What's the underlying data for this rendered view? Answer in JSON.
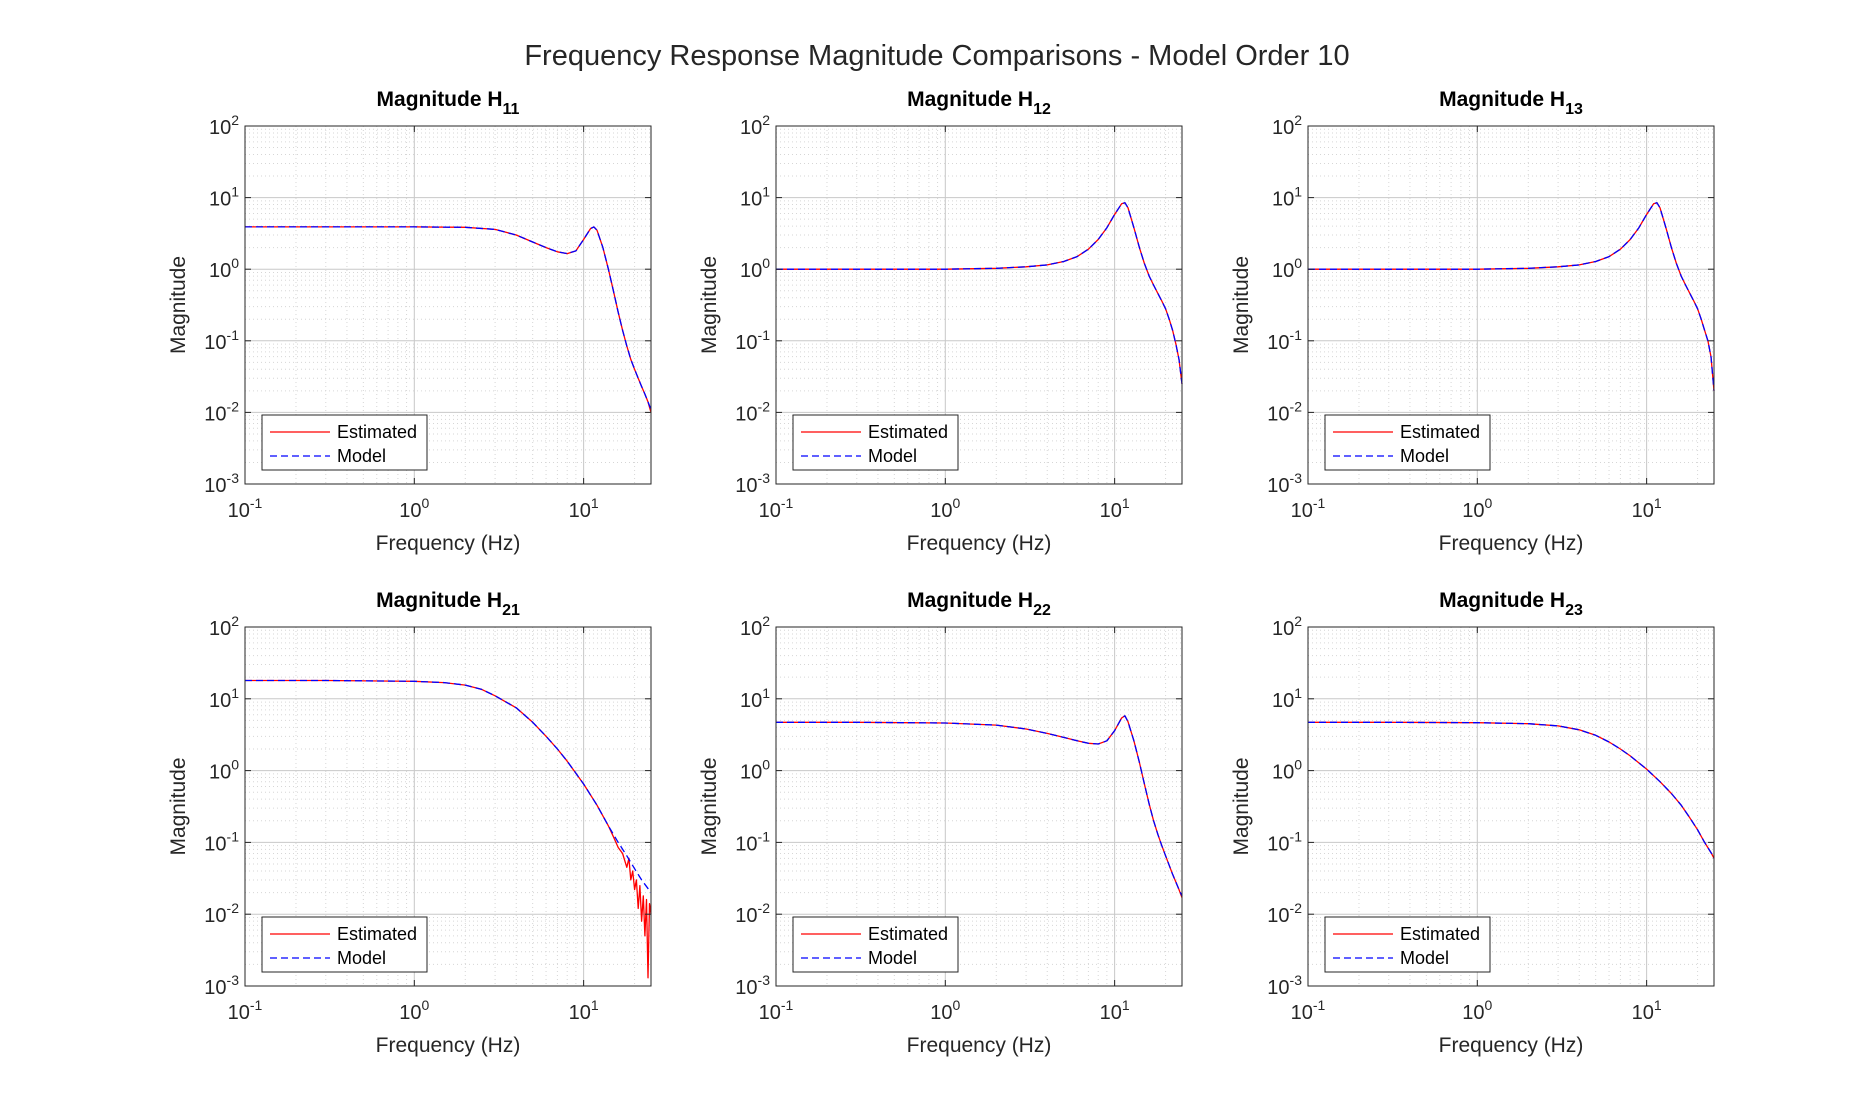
{
  "figure_title": "Frequency Response Magnitude Comparisons - Model Order 10",
  "colors": {
    "estimated": "#ff0000",
    "model": "#0000ff",
    "axes": "#262626",
    "grid": "#d6d6d6"
  },
  "chart_data": [
    {
      "type": "line",
      "title_main": "Magnitude H",
      "title_sub": "11",
      "xlabel": "Frequency (Hz)",
      "ylabel": "Magnitude",
      "xscale": "log",
      "yscale": "log",
      "xlim": [
        0.1,
        25
      ],
      "ylim": [
        0.001,
        100
      ],
      "grid": true,
      "legend_location": "bottom-left",
      "x_ticks": [
        {
          "base": "10",
          "exp": "-1"
        },
        {
          "base": "10",
          "exp": "0"
        },
        {
          "base": "10",
          "exp": "1"
        }
      ],
      "y_ticks": [
        {
          "base": "10",
          "exp": "-3"
        },
        {
          "base": "10",
          "exp": "-2"
        },
        {
          "base": "10",
          "exp": "-1"
        },
        {
          "base": "10",
          "exp": "0"
        },
        {
          "base": "10",
          "exp": "1"
        },
        {
          "base": "10",
          "exp": "2"
        }
      ],
      "series": [
        {
          "name": "Estimated",
          "style": "solid",
          "x": [
            0.1,
            0.3,
            1,
            2,
            3,
            4,
            5,
            6,
            7,
            8,
            9,
            10,
            11,
            11.5,
            12,
            13,
            14,
            15,
            16,
            17,
            18,
            19,
            20,
            21,
            22,
            23,
            24,
            25
          ],
          "y": [
            3.9,
            3.9,
            3.9,
            3.85,
            3.6,
            3.0,
            2.4,
            2.0,
            1.75,
            1.65,
            1.8,
            2.6,
            3.7,
            3.9,
            3.5,
            2.0,
            1.0,
            0.5,
            0.25,
            0.14,
            0.085,
            0.055,
            0.04,
            0.03,
            0.023,
            0.018,
            0.014,
            0.01
          ]
        },
        {
          "name": "Model",
          "style": "dashed",
          "x": [
            0.1,
            0.3,
            1,
            2,
            3,
            4,
            5,
            6,
            7,
            8,
            9,
            10,
            11,
            11.5,
            12,
            13,
            14,
            15,
            16,
            17,
            18,
            19,
            20,
            21,
            22,
            23,
            24,
            25
          ],
          "y": [
            3.9,
            3.9,
            3.9,
            3.85,
            3.6,
            3.0,
            2.4,
            2.0,
            1.75,
            1.65,
            1.8,
            2.6,
            3.7,
            3.9,
            3.5,
            2.0,
            1.0,
            0.5,
            0.25,
            0.14,
            0.085,
            0.055,
            0.04,
            0.03,
            0.023,
            0.018,
            0.014,
            0.011
          ]
        }
      ]
    },
    {
      "type": "line",
      "title_main": "Magnitude H",
      "title_sub": "12",
      "xlabel": "Frequency (Hz)",
      "ylabel": "Magnitude",
      "xscale": "log",
      "yscale": "log",
      "xlim": [
        0.1,
        25
      ],
      "ylim": [
        0.001,
        100
      ],
      "grid": true,
      "legend_location": "bottom-left",
      "x_ticks": [
        {
          "base": "10",
          "exp": "-1"
        },
        {
          "base": "10",
          "exp": "0"
        },
        {
          "base": "10",
          "exp": "1"
        }
      ],
      "y_ticks": [
        {
          "base": "10",
          "exp": "-3"
        },
        {
          "base": "10",
          "exp": "-2"
        },
        {
          "base": "10",
          "exp": "-1"
        },
        {
          "base": "10",
          "exp": "0"
        },
        {
          "base": "10",
          "exp": "1"
        },
        {
          "base": "10",
          "exp": "2"
        }
      ],
      "series": [
        {
          "name": "Estimated",
          "style": "solid",
          "x": [
            0.1,
            0.3,
            1,
            2,
            3,
            4,
            5,
            6,
            7,
            8,
            9,
            10,
            11,
            11.5,
            12,
            13,
            14,
            15,
            16,
            17,
            18,
            19,
            20,
            21,
            22,
            23,
            24,
            25
          ],
          "y": [
            1.0,
            1.0,
            1.0,
            1.03,
            1.08,
            1.15,
            1.28,
            1.5,
            1.9,
            2.6,
            3.8,
            5.8,
            8.2,
            8.5,
            7.2,
            3.8,
            2.0,
            1.2,
            0.8,
            0.6,
            0.46,
            0.36,
            0.28,
            0.2,
            0.14,
            0.09,
            0.055,
            0.025
          ]
        },
        {
          "name": "Model",
          "style": "dashed",
          "x": [
            0.1,
            0.3,
            1,
            2,
            3,
            4,
            5,
            6,
            7,
            8,
            9,
            10,
            11,
            11.5,
            12,
            13,
            14,
            15,
            16,
            17,
            18,
            19,
            20,
            21,
            22,
            23,
            24,
            25
          ],
          "y": [
            1.0,
            1.0,
            1.0,
            1.03,
            1.08,
            1.15,
            1.28,
            1.5,
            1.9,
            2.6,
            3.8,
            5.8,
            8.2,
            8.5,
            7.2,
            3.8,
            2.0,
            1.2,
            0.8,
            0.6,
            0.46,
            0.36,
            0.28,
            0.2,
            0.14,
            0.09,
            0.055,
            0.025
          ]
        }
      ]
    },
    {
      "type": "line",
      "title_main": "Magnitude H",
      "title_sub": "13",
      "xlabel": "Frequency (Hz)",
      "ylabel": "Magnitude",
      "xscale": "log",
      "yscale": "log",
      "xlim": [
        0.1,
        25
      ],
      "ylim": [
        0.001,
        100
      ],
      "grid": true,
      "legend_location": "bottom-left",
      "x_ticks": [
        {
          "base": "10",
          "exp": "-1"
        },
        {
          "base": "10",
          "exp": "0"
        },
        {
          "base": "10",
          "exp": "1"
        }
      ],
      "y_ticks": [
        {
          "base": "10",
          "exp": "-3"
        },
        {
          "base": "10",
          "exp": "-2"
        },
        {
          "base": "10",
          "exp": "-1"
        },
        {
          "base": "10",
          "exp": "0"
        },
        {
          "base": "10",
          "exp": "1"
        },
        {
          "base": "10",
          "exp": "2"
        }
      ],
      "series": [
        {
          "name": "Estimated",
          "style": "solid",
          "x": [
            0.1,
            0.3,
            1,
            2,
            3,
            4,
            5,
            6,
            7,
            8,
            9,
            10,
            11,
            11.5,
            12,
            13,
            14,
            15,
            16,
            17,
            18,
            19,
            20,
            21,
            22,
            23,
            24,
            25
          ],
          "y": [
            1.0,
            1.0,
            1.0,
            1.03,
            1.08,
            1.15,
            1.28,
            1.5,
            1.9,
            2.6,
            3.8,
            5.8,
            8.2,
            8.5,
            7.2,
            3.8,
            2.0,
            1.2,
            0.8,
            0.6,
            0.46,
            0.36,
            0.28,
            0.2,
            0.14,
            0.1,
            0.06,
            0.02
          ]
        },
        {
          "name": "Model",
          "style": "dashed",
          "x": [
            0.1,
            0.3,
            1,
            2,
            3,
            4,
            5,
            6,
            7,
            8,
            9,
            10,
            11,
            11.5,
            12,
            13,
            14,
            15,
            16,
            17,
            18,
            19,
            20,
            21,
            22,
            23,
            24,
            25
          ],
          "y": [
            1.0,
            1.0,
            1.0,
            1.03,
            1.08,
            1.15,
            1.28,
            1.5,
            1.9,
            2.6,
            3.8,
            5.8,
            8.2,
            8.5,
            7.2,
            3.8,
            2.0,
            1.2,
            0.8,
            0.6,
            0.46,
            0.36,
            0.28,
            0.2,
            0.14,
            0.1,
            0.06,
            0.02
          ]
        }
      ]
    },
    {
      "type": "line",
      "title_main": "Magnitude H",
      "title_sub": "21",
      "xlabel": "Frequency (Hz)",
      "ylabel": "Magnitude",
      "xscale": "log",
      "yscale": "log",
      "xlim": [
        0.1,
        25
      ],
      "ylim": [
        0.001,
        100
      ],
      "grid": true,
      "legend_location": "bottom-left",
      "x_ticks": [
        {
          "base": "10",
          "exp": "-1"
        },
        {
          "base": "10",
          "exp": "0"
        },
        {
          "base": "10",
          "exp": "1"
        }
      ],
      "y_ticks": [
        {
          "base": "10",
          "exp": "-3"
        },
        {
          "base": "10",
          "exp": "-2"
        },
        {
          "base": "10",
          "exp": "-1"
        },
        {
          "base": "10",
          "exp": "0"
        },
        {
          "base": "10",
          "exp": "1"
        },
        {
          "base": "10",
          "exp": "2"
        }
      ],
      "series": [
        {
          "name": "Estimated",
          "style": "solid",
          "x": [
            0.1,
            0.3,
            1,
            1.5,
            2,
            2.5,
            3,
            4,
            5,
            6,
            7,
            8,
            10,
            12,
            14,
            15,
            16,
            17,
            18,
            18.5,
            19,
            19.5,
            20,
            20.5,
            21,
            21.5,
            22,
            22.5,
            23,
            23.5,
            24,
            24.5,
            25
          ],
          "y": [
            18,
            18,
            17.5,
            16.8,
            15.5,
            13.5,
            11,
            7.5,
            4.7,
            3.0,
            2.0,
            1.35,
            0.65,
            0.33,
            0.17,
            0.12,
            0.085,
            0.07,
            0.045,
            0.06,
            0.03,
            0.04,
            0.022,
            0.03,
            0.012,
            0.025,
            0.008,
            0.018,
            0.005,
            0.016,
            0.0013,
            0.014,
            0.01
          ]
        },
        {
          "name": "Model",
          "style": "dashed",
          "x": [
            0.1,
            0.3,
            1,
            1.5,
            2,
            2.5,
            3,
            4,
            5,
            6,
            7,
            8,
            10,
            12,
            14,
            16,
            18,
            20,
            22,
            25
          ],
          "y": [
            18,
            18,
            17.5,
            16.8,
            15.5,
            13.5,
            11,
            7.5,
            4.7,
            3.0,
            2.0,
            1.35,
            0.65,
            0.33,
            0.17,
            0.1,
            0.065,
            0.043,
            0.03,
            0.02
          ]
        }
      ]
    },
    {
      "type": "line",
      "title_main": "Magnitude H",
      "title_sub": "22",
      "xlabel": "Frequency (Hz)",
      "ylabel": "Magnitude",
      "xscale": "log",
      "yscale": "log",
      "xlim": [
        0.1,
        25
      ],
      "ylim": [
        0.001,
        100
      ],
      "grid": true,
      "legend_location": "bottom-left",
      "x_ticks": [
        {
          "base": "10",
          "exp": "-1"
        },
        {
          "base": "10",
          "exp": "0"
        },
        {
          "base": "10",
          "exp": "1"
        }
      ],
      "y_ticks": [
        {
          "base": "10",
          "exp": "-3"
        },
        {
          "base": "10",
          "exp": "-2"
        },
        {
          "base": "10",
          "exp": "-1"
        },
        {
          "base": "10",
          "exp": "0"
        },
        {
          "base": "10",
          "exp": "1"
        },
        {
          "base": "10",
          "exp": "2"
        }
      ],
      "series": [
        {
          "name": "Estimated",
          "style": "solid",
          "x": [
            0.1,
            0.3,
            1,
            2,
            3,
            4,
            5,
            6,
            7,
            8,
            9,
            10,
            11,
            11.5,
            12,
            13,
            14,
            15,
            16,
            17,
            18,
            19,
            20,
            21,
            22,
            23,
            24,
            25
          ],
          "y": [
            4.7,
            4.7,
            4.6,
            4.3,
            3.8,
            3.3,
            2.9,
            2.6,
            2.4,
            2.35,
            2.6,
            3.6,
            5.4,
            5.8,
            4.8,
            2.6,
            1.3,
            0.65,
            0.34,
            0.2,
            0.13,
            0.09,
            0.065,
            0.048,
            0.036,
            0.028,
            0.022,
            0.017
          ]
        },
        {
          "name": "Model",
          "style": "dashed",
          "x": [
            0.1,
            0.3,
            1,
            2,
            3,
            4,
            5,
            6,
            7,
            8,
            9,
            10,
            11,
            11.5,
            12,
            13,
            14,
            15,
            16,
            17,
            18,
            19,
            20,
            21,
            22,
            23,
            24,
            25
          ],
          "y": [
            4.7,
            4.7,
            4.6,
            4.3,
            3.8,
            3.3,
            2.9,
            2.6,
            2.4,
            2.35,
            2.6,
            3.6,
            5.4,
            5.8,
            4.8,
            2.6,
            1.3,
            0.65,
            0.34,
            0.2,
            0.13,
            0.09,
            0.065,
            0.048,
            0.036,
            0.028,
            0.022,
            0.018
          ]
        }
      ]
    },
    {
      "type": "line",
      "title_main": "Magnitude H",
      "title_sub": "23",
      "xlabel": "Frequency (Hz)",
      "ylabel": "Magnitude",
      "xscale": "log",
      "yscale": "log",
      "xlim": [
        0.1,
        25
      ],
      "ylim": [
        0.001,
        100
      ],
      "grid": true,
      "legend_location": "bottom-left",
      "x_ticks": [
        {
          "base": "10",
          "exp": "-1"
        },
        {
          "base": "10",
          "exp": "0"
        },
        {
          "base": "10",
          "exp": "1"
        }
      ],
      "y_ticks": [
        {
          "base": "10",
          "exp": "-3"
        },
        {
          "base": "10",
          "exp": "-2"
        },
        {
          "base": "10",
          "exp": "-1"
        },
        {
          "base": "10",
          "exp": "0"
        },
        {
          "base": "10",
          "exp": "1"
        },
        {
          "base": "10",
          "exp": "2"
        }
      ],
      "series": [
        {
          "name": "Estimated",
          "style": "solid",
          "x": [
            0.1,
            0.3,
            1,
            2,
            3,
            4,
            5,
            6,
            7,
            8,
            10,
            12,
            14,
            16,
            18,
            20,
            22,
            24,
            25
          ],
          "y": [
            4.7,
            4.7,
            4.65,
            4.5,
            4.2,
            3.7,
            3.1,
            2.5,
            2.0,
            1.6,
            1.05,
            0.7,
            0.48,
            0.33,
            0.22,
            0.15,
            0.1,
            0.072,
            0.06
          ]
        },
        {
          "name": "Model",
          "style": "dashed",
          "x": [
            0.1,
            0.3,
            1,
            2,
            3,
            4,
            5,
            6,
            7,
            8,
            10,
            12,
            14,
            16,
            18,
            20,
            22,
            24,
            25
          ],
          "y": [
            4.7,
            4.7,
            4.65,
            4.5,
            4.2,
            3.7,
            3.1,
            2.5,
            2.0,
            1.6,
            1.05,
            0.7,
            0.48,
            0.33,
            0.22,
            0.15,
            0.1,
            0.072,
            0.06
          ]
        }
      ]
    }
  ]
}
